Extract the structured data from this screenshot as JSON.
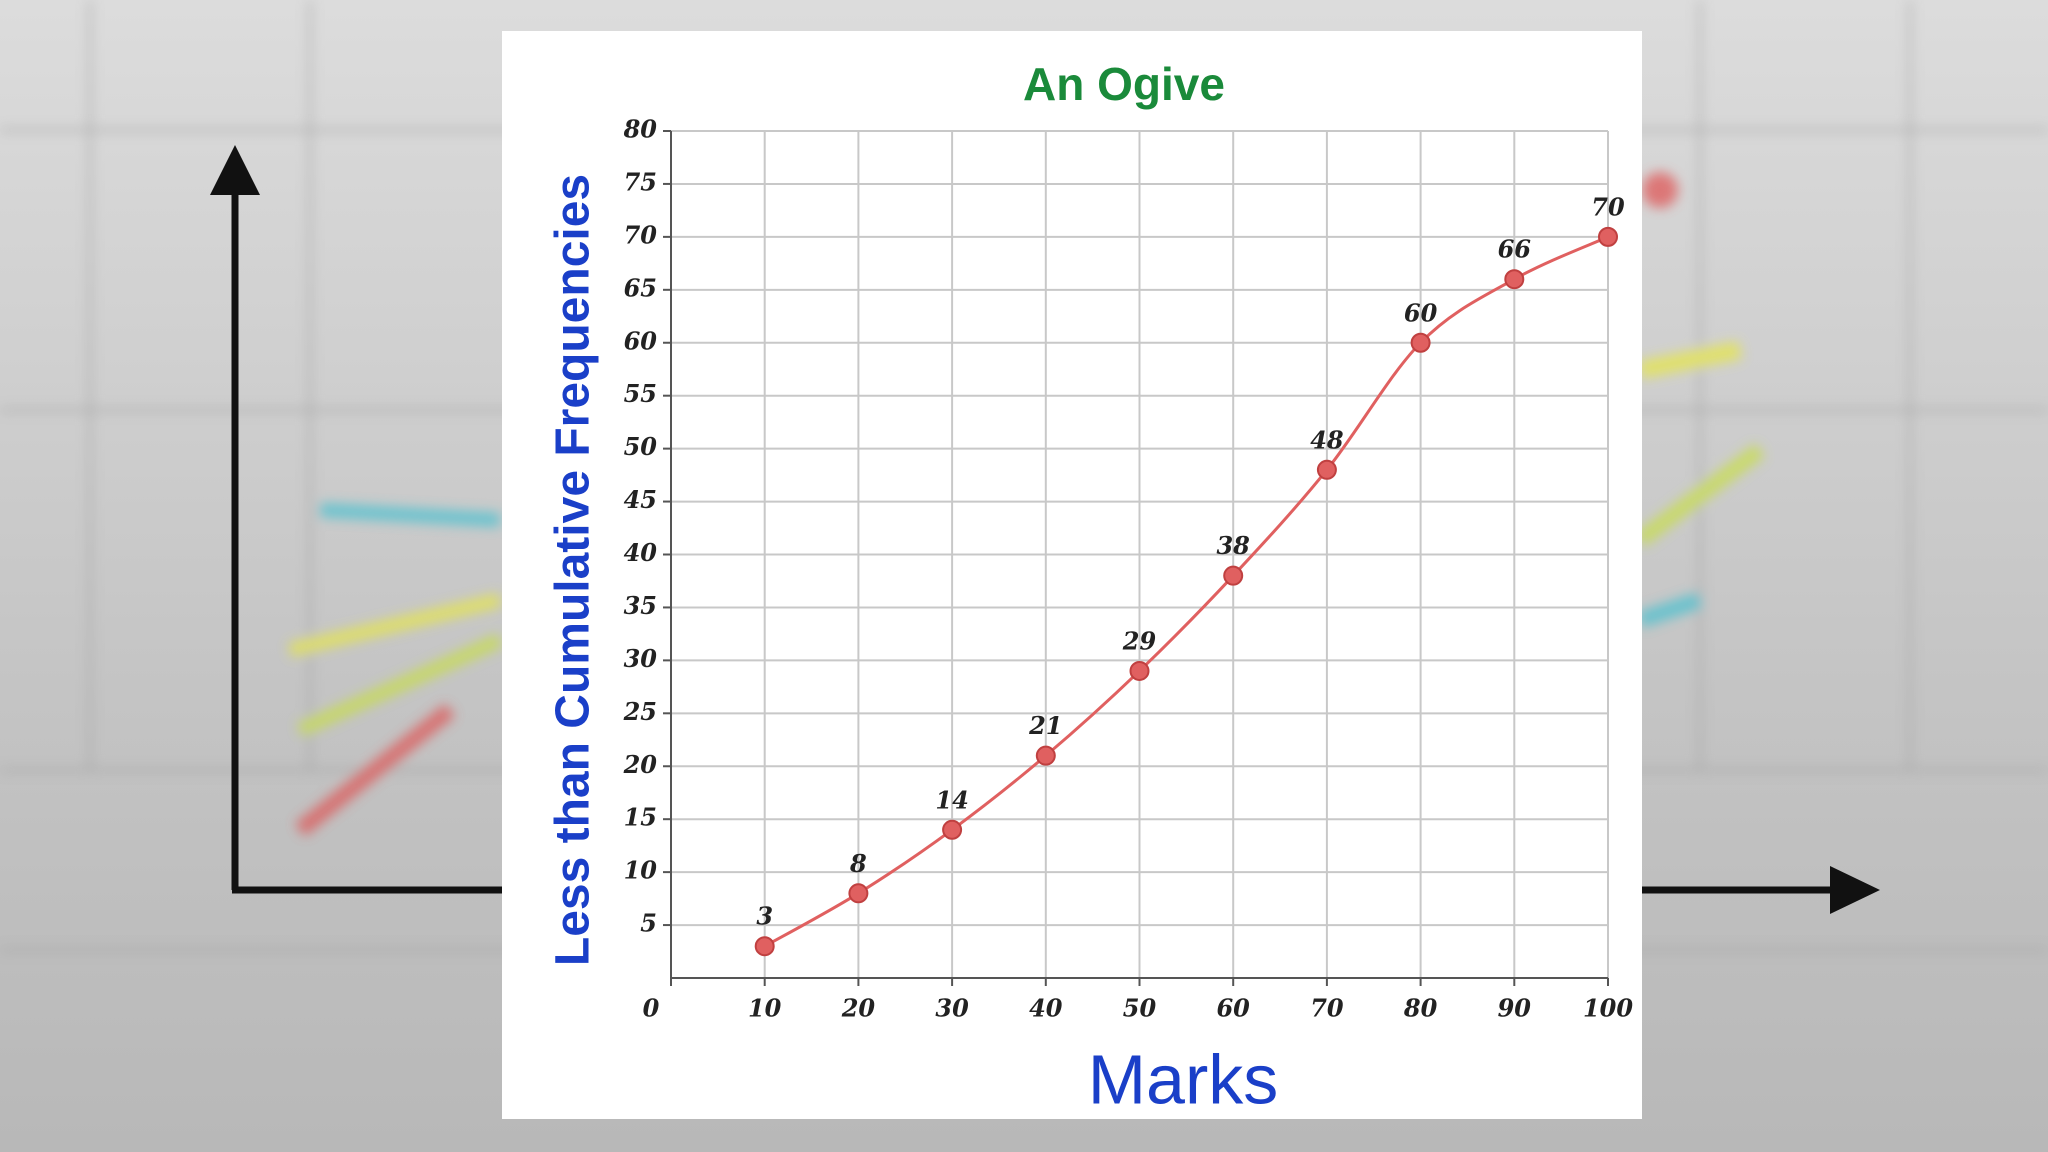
{
  "chart_data": {
    "type": "line",
    "title": "An Ogive",
    "x_label": "Marks",
    "y_label": "Less than Cumulative Frequencies",
    "x": [
      10,
      20,
      30,
      40,
      50,
      60,
      70,
      80,
      90,
      100
    ],
    "series": [
      {
        "color": "#e06060",
        "values": [
          3,
          8,
          14,
          21,
          29,
          38,
          48,
          60,
          66,
          70
        ]
      }
    ],
    "xlim": [
      0,
      100
    ],
    "xticks": [
      0,
      10,
      20,
      30,
      40,
      50,
      60,
      70,
      80,
      90,
      100
    ],
    "ylim": [
      0,
      80
    ],
    "yticks": [
      5,
      10,
      15,
      20,
      25,
      30,
      35,
      40,
      45,
      50,
      55,
      60,
      65,
      70,
      75,
      80
    ],
    "grid": true
  }
}
